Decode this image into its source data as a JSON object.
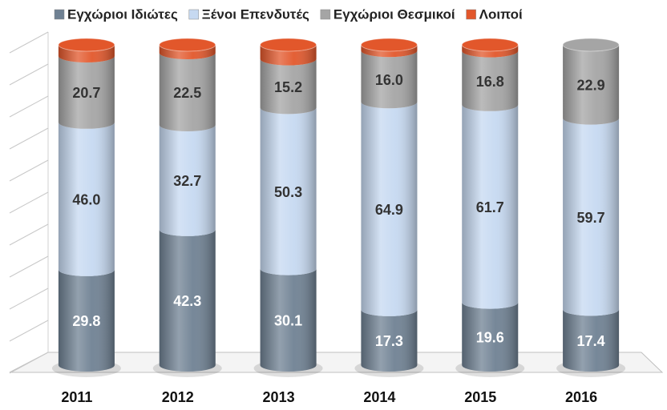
{
  "chart_data": {
    "type": "stacked_cylinder",
    "categories": [
      "2011",
      "2012",
      "2013",
      "2014",
      "2015",
      "2016"
    ],
    "series": [
      {
        "name": "Εγχώριοι Ιδιώτες",
        "color": "#6f8193",
        "values": [
          29.8,
          42.3,
          30.1,
          17.3,
          19.6,
          17.4
        ],
        "value_labels": [
          "29.8",
          "42.3",
          "30.1",
          "17.3",
          "19.6",
          "17.4"
        ]
      },
      {
        "name": "Ξένοι Επενδυτές",
        "color": "#c6d9f1",
        "values": [
          46.0,
          32.7,
          50.3,
          64.9,
          61.7,
          59.7
        ],
        "value_labels": [
          "46.0",
          "32.7",
          "50.3",
          "64.9",
          "61.7",
          "59.7"
        ]
      },
      {
        "name": "Εγχώριοι Θεσμικοί",
        "color": "#a5a5a5",
        "values": [
          20.7,
          22.5,
          15.2,
          16.0,
          16.8,
          22.9
        ],
        "value_labels": [
          "20.7",
          "22.5",
          "15.2",
          "16.0",
          "16.8",
          "22.9"
        ]
      },
      {
        "name": "Λοιποί",
        "color": "#e2572b",
        "values": [
          3.5,
          2.5,
          4.4,
          1.8,
          1.9,
          0
        ]
      }
    ],
    "ylim": [
      0,
      100
    ],
    "yticks": [
      0,
      10,
      20,
      30,
      40,
      50,
      60,
      70,
      80,
      90,
      100
    ],
    "grid": true,
    "legend": "top"
  }
}
